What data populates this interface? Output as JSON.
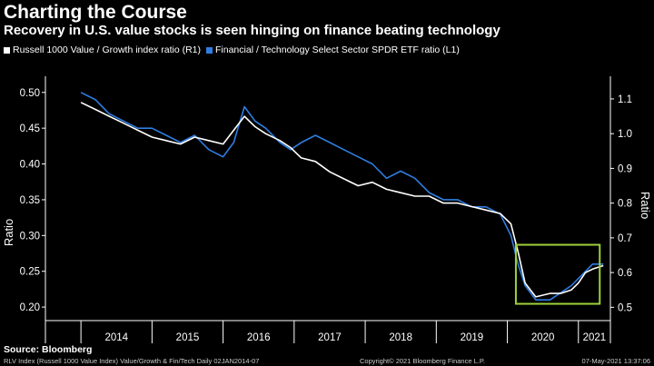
{
  "header": {
    "title": "Charting the Course",
    "subtitle": "Recovery in U.S. value stocks is seen hinging on finance beating technology"
  },
  "source": "Source: Bloomberg",
  "footer": {
    "left": "RLV Index (Russell 1000 Value Index) Value/Growth & Fin/Tech  Daily 02JAN2014-07",
    "center": "Copyright© 2021 Bloomberg Finance L.P.",
    "right": "07-May-2021 13:37:06"
  },
  "colors": {
    "background": "#000000",
    "white_series": "#ffffff",
    "blue_series": "#2f7de1",
    "highlight_box": "#9fd03c"
  },
  "chart_data": {
    "type": "line",
    "x_range": [
      2013.5,
      2021.45
    ],
    "x_ticks": [
      "2014",
      "2015",
      "2016",
      "2017",
      "2018",
      "2019",
      "2020",
      "2021"
    ],
    "left_axis": {
      "label": "Ratio",
      "ylim": [
        0.19,
        0.52
      ],
      "ticks": [
        "0.50",
        "0.45",
        "0.40",
        "0.35",
        "0.30",
        "0.25",
        "0.20"
      ],
      "tick_values": [
        0.5,
        0.45,
        0.4,
        0.35,
        0.3,
        0.25,
        0.2
      ]
    },
    "right_axis": {
      "label": "Ratio",
      "ylim": [
        0.48,
        1.16
      ],
      "ticks": [
        "1.1",
        "1.0",
        "0.9",
        "0.8",
        "0.7",
        "0.6",
        "0.5"
      ],
      "tick_values": [
        1.1,
        1.0,
        0.9,
        0.8,
        0.7,
        0.6,
        0.5
      ]
    },
    "series": [
      {
        "name": "Russell 1000 Value / Growth index ratio (R1)",
        "axis": "right",
        "color": "#ffffff",
        "x": [
          2014.0,
          2014.2,
          2014.4,
          2014.6,
          2014.8,
          2015.0,
          2015.2,
          2015.4,
          2015.6,
          2015.8,
          2016.0,
          2016.15,
          2016.3,
          2016.45,
          2016.6,
          2016.8,
          2016.95,
          2017.1,
          2017.3,
          2017.5,
          2017.7,
          2017.9,
          2018.1,
          2018.3,
          2018.5,
          2018.7,
          2018.9,
          2019.1,
          2019.3,
          2019.5,
          2019.7,
          2019.9,
          2020.05,
          2020.15,
          2020.25,
          2020.4,
          2020.6,
          2020.75,
          2020.9,
          2021.0,
          2021.1,
          2021.2,
          2021.35
        ],
        "y": [
          1.09,
          1.07,
          1.05,
          1.03,
          1.01,
          0.99,
          0.98,
          0.97,
          0.99,
          0.98,
          0.97,
          1.01,
          1.05,
          1.02,
          1.0,
          0.98,
          0.96,
          0.93,
          0.92,
          0.89,
          0.87,
          0.85,
          0.86,
          0.84,
          0.83,
          0.82,
          0.82,
          0.8,
          0.8,
          0.79,
          0.78,
          0.77,
          0.74,
          0.66,
          0.57,
          0.53,
          0.54,
          0.54,
          0.55,
          0.57,
          0.6,
          0.61,
          0.62
        ]
      },
      {
        "name": "Financial / Technology Select Sector SPDR ETF ratio (L1)",
        "axis": "left",
        "color": "#2f7de1",
        "x": [
          2014.0,
          2014.2,
          2014.4,
          2014.6,
          2014.8,
          2015.0,
          2015.2,
          2015.4,
          2015.6,
          2015.8,
          2016.0,
          2016.15,
          2016.3,
          2016.45,
          2016.6,
          2016.8,
          2016.95,
          2017.1,
          2017.3,
          2017.5,
          2017.7,
          2017.9,
          2018.1,
          2018.3,
          2018.5,
          2018.7,
          2018.9,
          2019.1,
          2019.3,
          2019.5,
          2019.7,
          2019.9,
          2020.05,
          2020.15,
          2020.25,
          2020.4,
          2020.6,
          2020.75,
          2020.9,
          2021.0,
          2021.1,
          2021.2,
          2021.35
        ],
        "y": [
          0.5,
          0.49,
          0.47,
          0.46,
          0.45,
          0.45,
          0.44,
          0.43,
          0.44,
          0.42,
          0.41,
          0.43,
          0.48,
          0.46,
          0.45,
          0.43,
          0.42,
          0.43,
          0.44,
          0.43,
          0.42,
          0.41,
          0.4,
          0.38,
          0.39,
          0.38,
          0.36,
          0.35,
          0.35,
          0.34,
          0.34,
          0.33,
          0.3,
          0.26,
          0.23,
          0.21,
          0.21,
          0.22,
          0.23,
          0.24,
          0.25,
          0.26,
          0.26
        ]
      }
    ],
    "highlight_box": {
      "x_range": [
        2020.12,
        2021.3
      ],
      "right_axis_range": [
        0.51,
        0.68
      ]
    },
    "grid": false
  }
}
